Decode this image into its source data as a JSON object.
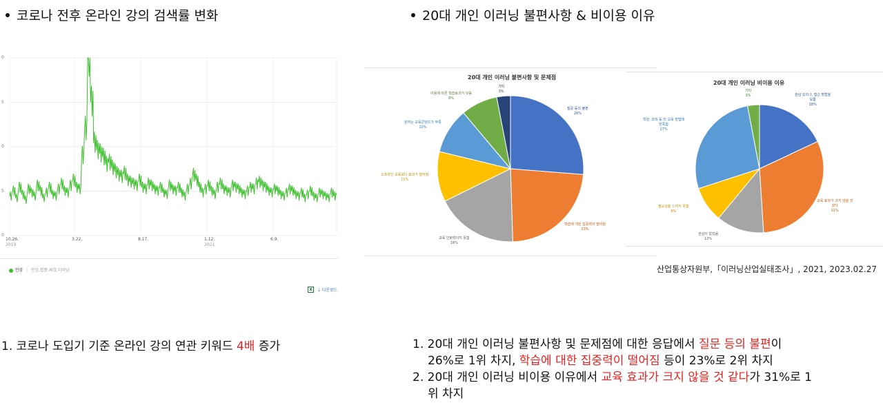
{
  "headings": {
    "left": "코로나 전후 온라인 강의 검색률 변화",
    "right": "20대 개인 이러닝 불편사항 & 비이용 이유"
  },
  "trend_chart": {
    "x_ticks": [
      {
        "label": "10.26.",
        "sub": "2019"
      },
      {
        "label": "3.22.",
        "sub": ""
      },
      {
        "label": "8.17.",
        "sub": ""
      },
      {
        "label": "1.12.",
        "sub": "2021"
      },
      {
        "label": "6.9.",
        "sub": ""
      }
    ],
    "y_ticks": [
      "0",
      "5",
      "0",
      "5",
      "0"
    ],
    "legend_label": "인강",
    "legend_terms": "인강,접중,써강,이러닝",
    "download_label": "↓ 다운로드",
    "line_color": "#3bbf2b"
  },
  "chart_data": [
    {
      "type": "line",
      "title": "",
      "xlabel": "",
      "ylabel": "",
      "x_range": [
        "2019-10-26",
        "2022-03-01"
      ],
      "ylim": [
        0,
        100
      ],
      "series": [
        {
          "values": [
            22,
            25,
            21,
            27,
            23,
            20,
            26,
            24,
            22,
            28,
            25,
            21,
            24,
            27,
            23,
            22,
            26,
            29,
            25,
            24,
            28,
            31,
            27,
            26,
            45,
            60,
            100,
            75,
            52,
            48,
            46,
            44,
            40,
            41,
            38,
            36,
            34,
            33,
            35,
            31,
            30,
            29,
            28,
            31,
            27,
            26,
            29,
            28,
            26,
            25,
            27,
            24,
            23,
            28,
            26,
            25,
            27,
            24,
            22,
            26,
            29,
            34,
            31,
            27,
            24,
            26,
            28,
            25,
            23,
            27,
            29,
            26,
            25,
            24,
            28,
            27,
            26,
            24,
            23,
            25,
            27,
            26,
            29,
            30,
            28,
            27,
            25,
            24,
            26,
            25,
            23,
            22,
            24,
            26,
            25,
            23,
            22,
            24,
            21,
            23,
            25,
            22,
            21,
            24,
            23,
            22,
            21,
            24,
            22,
            23
          ]
        }
      ]
    },
    {
      "type": "pie",
      "title": "20대 개인 이러닝 불편사항 및 문제점",
      "slices": [
        {
          "label": "질문 등의 불편",
          "value": 26,
          "color": "#4472c4"
        },
        {
          "label": "학습에 대한 집중력이 떨어짐",
          "value": 23,
          "color": "#ed7d31"
        },
        {
          "label": "교육 인화력이지 못함",
          "value": 18,
          "color": "#a5a5a5"
        },
        {
          "label": "오프라인 교육보다 효과가 떨어짐",
          "value": 11,
          "color": "#ffc000"
        },
        {
          "label": "원하는 교육콘텐츠가 부족",
          "value": 10,
          "color": "#5b9bd5"
        },
        {
          "label": "이용에 따른 학습효과가 낮음",
          "value": 8,
          "color": "#70ad47"
        },
        {
          "label": "기타",
          "value": 3,
          "color": "#264478"
        }
      ]
    },
    {
      "type": "pie",
      "title": "20대 개인 이러닝 비이용 이유",
      "slices": [
        {
          "label": "관심 있으나, 접근 방법을 모름",
          "value": 18,
          "color": "#4472c4"
        },
        {
          "label": "교육 효과가 크지 않을 것 같다",
          "value": 31,
          "color": "#ed7d31"
        },
        {
          "label": "관심이 없었음",
          "value": 12,
          "color": "#a5a5a5"
        },
        {
          "label": "필요성을 느끼지 못함",
          "value": 9,
          "color": "#ffc000"
        },
        {
          "label": "학원, 과외 등 타 교육 방법에 만족함",
          "value": 27,
          "color": "#5b9bd5"
        },
        {
          "label": "기타",
          "value": 3,
          "color": "#70ad47"
        }
      ]
    }
  ],
  "pie1": {
    "title": "20대 개인 이러닝 불편사항 및 문제점",
    "labels": [
      {
        "text": "질문 등의 불편",
        "pct": "26%",
        "color": "#2f5597"
      },
      {
        "text": "학습에 대한 집중력이 떨어짐",
        "pct": "23%",
        "color": "#c55a11"
      },
      {
        "text": "교육 인화력이지 못함",
        "pct": "18%",
        "color": "#595959"
      },
      {
        "text": "오프라인 교육보다 효과가 떨어짐",
        "pct": "11%",
        "color": "#bf8f00"
      },
      {
        "text": "원하는 교육콘텐츠가 부족",
        "pct": "10%",
        "color": "#2e75b6"
      },
      {
        "text": "이용에 따른 학습효과가 낮음",
        "pct": "8%",
        "color": "#548235"
      },
      {
        "text": "기타",
        "pct": "3%",
        "color": "#1f3864"
      }
    ]
  },
  "pie2": {
    "title": "20대 개인 이러닝 비이용 이유",
    "labels": [
      {
        "text": "관심 있으나, 접근 방법을",
        "text2": "모름",
        "pct": "18%",
        "color": "#2f5597"
      },
      {
        "text": "교육 효과가 크지 않을 것",
        "text2": "같다",
        "pct": "31%",
        "color": "#c55a11"
      },
      {
        "text": "관심이 없었음",
        "text2": "",
        "pct": "12%",
        "color": "#595959"
      },
      {
        "text": "필요성을 느끼지 못함",
        "text2": "",
        "pct": "9%",
        "color": "#bf8f00"
      },
      {
        "text": "학원, 과외 등 타 교육 방법에",
        "text2": "만족함",
        "pct": "27%",
        "color": "#2e75b6"
      },
      {
        "text": "기타",
        "text2": "",
        "pct": "3%",
        "color": "#548235"
      }
    ]
  },
  "source": "산업통상자원부,「이러닝산업실태조사」, 2021, 2023.02.27",
  "notes": {
    "left": {
      "pre": "1. 코로나 도입기 기준 온라인 강의 연관 키워드 ",
      "hl": "4배",
      "post": " 증가"
    },
    "right": {
      "l1_pre": "1. 20대 개인 이러닝 불편사항 및 문제점에 대한 응답에서 ",
      "l1_hl": "질문 등의 불편",
      "l1_post": "이",
      "l2_pre": "26%로 1위 차지, ",
      "l2_hl": "학습에 대한 집중력이 떨어짐",
      "l2_post": " 등이 23%로 2위 차지",
      "l3_pre": "2. 20대 개인 이러닝 비이용 이유에서 ",
      "l3_hl": "교육 효과가 크지 않을 것 같다",
      "l3_post": "가 31%로 1",
      "l4": "위 차지"
    }
  }
}
